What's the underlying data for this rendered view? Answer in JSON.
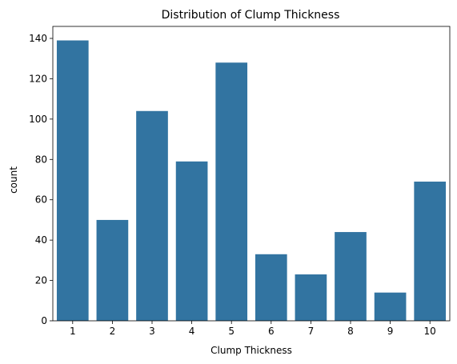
{
  "chart_data": {
    "type": "bar",
    "title": "Distribution of Clump Thickness",
    "xlabel": "Clump Thickness",
    "ylabel": "count",
    "categories": [
      "1",
      "2",
      "3",
      "4",
      "5",
      "6",
      "7",
      "8",
      "9",
      "10"
    ],
    "values": [
      139,
      50,
      104,
      79,
      128,
      33,
      23,
      44,
      14,
      69
    ],
    "ylim": [
      0,
      145.95
    ],
    "yticks": [
      0,
      20,
      40,
      60,
      80,
      100,
      120,
      140
    ],
    "grid": false,
    "legend": "none",
    "colors": {
      "bar": "#3274a1",
      "axis": "#000000",
      "background": "#ffffff"
    }
  }
}
